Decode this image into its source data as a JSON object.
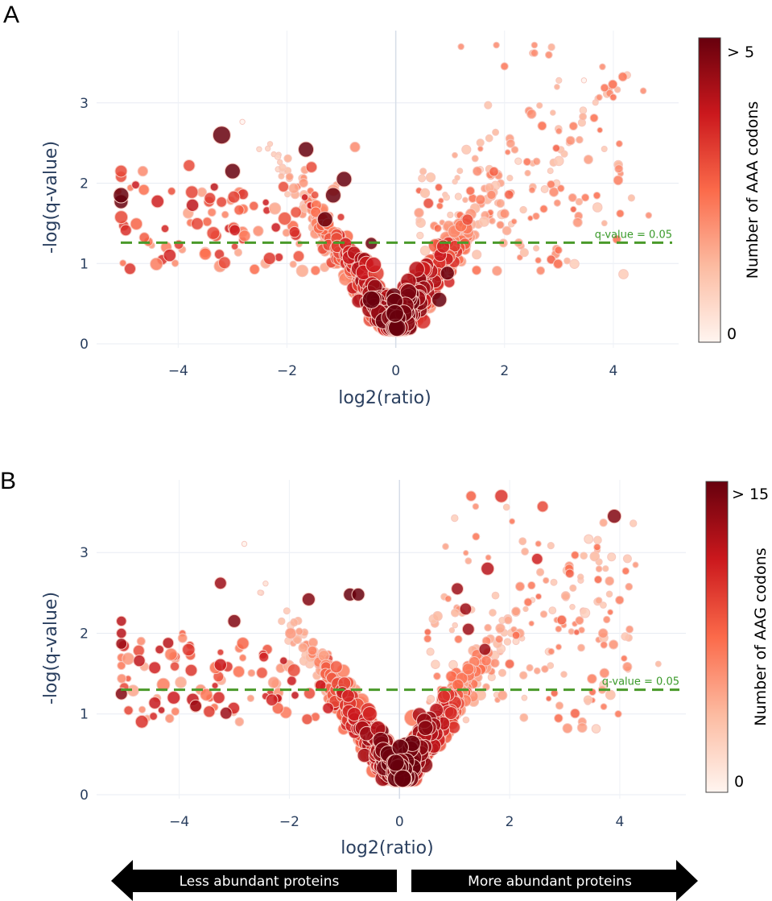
{
  "chart_data": [
    {
      "type": "scatter",
      "panel": "A",
      "xlabel": "log2(ratio)",
      "ylabel": "-log(q-value)",
      "xlim": [
        -5.5,
        5.2
      ],
      "ylim": [
        -0.05,
        3.9
      ],
      "x_ticks": [
        -4,
        -2,
        0,
        2,
        4
      ],
      "x_tick_labels": [
        "−4",
        "−2",
        "0",
        "2",
        "4"
      ],
      "y_ticks": [
        0,
        1,
        2,
        3
      ],
      "y_tick_labels": [
        "0",
        "1",
        "2",
        "3"
      ],
      "threshold": {
        "y": 1.26,
        "label": "q-value = 0.05",
        "color": "#4a9a2a"
      },
      "colorbar": {
        "title": "Number of AAA codons",
        "min_label": "0",
        "max_label": "> 5",
        "min": 0,
        "max": 5,
        "colors": [
          "#fff5f0",
          "#fcbba1",
          "#fb6a4a",
          "#cb181d",
          "#67000d"
        ]
      },
      "seed": 11,
      "counts": {
        "core": 820,
        "left": 95,
        "right": 120,
        "outliers": 40
      },
      "points": [
        {
          "x": -3.2,
          "y": 2.6,
          "size": 3,
          "color": 5
        },
        {
          "x": -3.0,
          "y": 2.15,
          "size": 2.5,
          "color": 5
        },
        {
          "x": -1.65,
          "y": 2.42,
          "size": 2.5,
          "color": 5
        },
        {
          "x": -0.95,
          "y": 2.05,
          "size": 2.5,
          "color": 5
        },
        {
          "x": -1.15,
          "y": 1.85,
          "size": 2.5,
          "color": 5
        },
        {
          "x": -1.3,
          "y": 1.55,
          "size": 2.5,
          "color": 5
        },
        {
          "x": -5.05,
          "y": 1.85,
          "size": 2.5,
          "color": 5
        },
        {
          "x": -5.05,
          "y": 1.77,
          "size": 2.2,
          "color": 5
        },
        {
          "x": -5.05,
          "y": 2.15,
          "size": 1.8,
          "color": 3
        },
        {
          "x": -5.05,
          "y": 2.08,
          "size": 1.6,
          "color": 3
        },
        {
          "x": -4.65,
          "y": 2.15,
          "size": 1.4,
          "color": 2
        },
        {
          "x": -3.8,
          "y": 2.22,
          "size": 1.7,
          "color": 3
        },
        {
          "x": -3.15,
          "y": 1.01,
          "size": 1.8,
          "color": 3
        },
        {
          "x": -1.55,
          "y": 2.2,
          "size": 1.6,
          "color": 3
        },
        {
          "x": -0.75,
          "y": 2.45,
          "size": 1.4,
          "color": 2
        },
        {
          "x": -0.45,
          "y": 0.55,
          "size": 3,
          "color": 5
        },
        {
          "x": 0.95,
          "y": 0.88,
          "size": 2.2,
          "color": 5
        },
        {
          "x": 0.8,
          "y": 0.55,
          "size": 2.4,
          "color": 5
        },
        {
          "x": 1.2,
          "y": 3.7,
          "size": 0.6,
          "color": 2
        },
        {
          "x": 1.85,
          "y": 3.72,
          "size": 0.6,
          "color": 2
        },
        {
          "x": 2.55,
          "y": 3.72,
          "size": 0.6,
          "color": 2
        },
        {
          "x": 2.55,
          "y": 3.62,
          "size": 0.8,
          "color": 2
        },
        {
          "x": 2.45,
          "y": 2.9,
          "size": 1.0,
          "color": 2
        },
        {
          "x": 3.8,
          "y": 3.45,
          "size": 0.6,
          "color": 2
        },
        {
          "x": 4.1,
          "y": 2.18,
          "size": 1.0,
          "color": 2
        },
        {
          "x": 4.55,
          "y": 3.15,
          "size": 0.6,
          "color": 2
        },
        {
          "x": 4.65,
          "y": 1.6,
          "size": 0.6,
          "color": 2
        },
        {
          "x": 3.25,
          "y": 1.82,
          "size": 1.0,
          "color": 2
        },
        {
          "x": 3.0,
          "y": 2.65,
          "size": 0.6,
          "color": 2
        },
        {
          "x": 2.0,
          "y": 1.62,
          "size": 1.2,
          "color": 2
        },
        {
          "x": 1.5,
          "y": 2.15,
          "size": 1.2,
          "color": 2
        },
        {
          "x": 0.6,
          "y": 1.75,
          "size": 1.4,
          "color": 3
        },
        {
          "x": -0.45,
          "y": 1.25,
          "size": 1.8,
          "color": 5
        }
      ]
    },
    {
      "type": "scatter",
      "panel": "B",
      "xlabel": "log2(ratio)",
      "ylabel": "-log(q-value)",
      "xlim": [
        -5.5,
        5.2
      ],
      "ylim": [
        -0.05,
        3.9
      ],
      "x_ticks": [
        -4,
        -2,
        0,
        2,
        4
      ],
      "x_tick_labels": [
        "−4",
        "−2",
        "0",
        "2",
        "4"
      ],
      "y_ticks": [
        0,
        1,
        2,
        3
      ],
      "y_tick_labels": [
        "0",
        "1",
        "2",
        "3"
      ],
      "threshold": {
        "y": 1.3,
        "label": "q-value = 0.05",
        "color": "#4a9a2a"
      },
      "colorbar": {
        "title": "Number of AAG codons",
        "min_label": "0",
        "max_label": "> 15",
        "min": 0,
        "max": 15,
        "colors": [
          "#fff5f0",
          "#fcbba1",
          "#fb6a4a",
          "#cb181d",
          "#67000d"
        ]
      },
      "seed": 29,
      "counts": {
        "core": 820,
        "left": 95,
        "right": 130,
        "outliers": 40
      },
      "points": [
        {
          "x": 1.85,
          "y": 3.7,
          "size": 2.0,
          "color": 10
        },
        {
          "x": 1.3,
          "y": 3.7,
          "size": 1.4,
          "color": 8
        },
        {
          "x": 2.6,
          "y": 3.57,
          "size": 1.6,
          "color": 9
        },
        {
          "x": 3.9,
          "y": 3.45,
          "size": 2.2,
          "color": 14
        },
        {
          "x": 2.5,
          "y": 2.92,
          "size": 1.6,
          "color": 11
        },
        {
          "x": 1.6,
          "y": 2.8,
          "size": 2.0,
          "color": 12
        },
        {
          "x": -3.25,
          "y": 2.62,
          "size": 1.8,
          "color": 13
        },
        {
          "x": -3.0,
          "y": 2.15,
          "size": 2.0,
          "color": 14
        },
        {
          "x": -1.65,
          "y": 2.42,
          "size": 2.0,
          "color": 14
        },
        {
          "x": -0.9,
          "y": 2.48,
          "size": 2.0,
          "color": 15
        },
        {
          "x": -0.75,
          "y": 2.48,
          "size": 2.0,
          "color": 15
        },
        {
          "x": -5.05,
          "y": 2.15,
          "size": 1.4,
          "color": 12
        },
        {
          "x": -5.05,
          "y": 2.0,
          "size": 1.4,
          "color": 12
        },
        {
          "x": -5.05,
          "y": 1.87,
          "size": 1.6,
          "color": 13
        },
        {
          "x": -5.05,
          "y": 1.25,
          "size": 1.8,
          "color": 14
        },
        {
          "x": -5.05,
          "y": 1.6,
          "size": 1.0,
          "color": 7
        },
        {
          "x": -5.05,
          "y": 1.7,
          "size": 1.0,
          "color": 7
        },
        {
          "x": -3.7,
          "y": 1.1,
          "size": 1.8,
          "color": 13
        },
        {
          "x": -3.15,
          "y": 1.01,
          "size": 1.8,
          "color": 13
        },
        {
          "x": -4.2,
          "y": 1.88,
          "size": 1.6,
          "color": 12
        },
        {
          "x": 1.05,
          "y": 2.55,
          "size": 1.8,
          "color": 13
        },
        {
          "x": 1.2,
          "y": 2.3,
          "size": 1.8,
          "color": 13
        },
        {
          "x": 1.25,
          "y": 2.05,
          "size": 1.8,
          "color": 13
        },
        {
          "x": 1.55,
          "y": 1.8,
          "size": 1.8,
          "color": 13
        },
        {
          "x": 2.0,
          "y": 1.62,
          "size": 1.2,
          "color": 8
        },
        {
          "x": 3.3,
          "y": 1.82,
          "size": 0.8,
          "color": 5
        },
        {
          "x": 4.7,
          "y": 1.62,
          "size": 0.5,
          "color": 4
        },
        {
          "x": 4.15,
          "y": 1.55,
          "size": 0.5,
          "color": 4
        }
      ]
    }
  ],
  "bottom_arrows": {
    "left_label": "Less abundant proteins",
    "right_label": "More abundant proteins"
  }
}
